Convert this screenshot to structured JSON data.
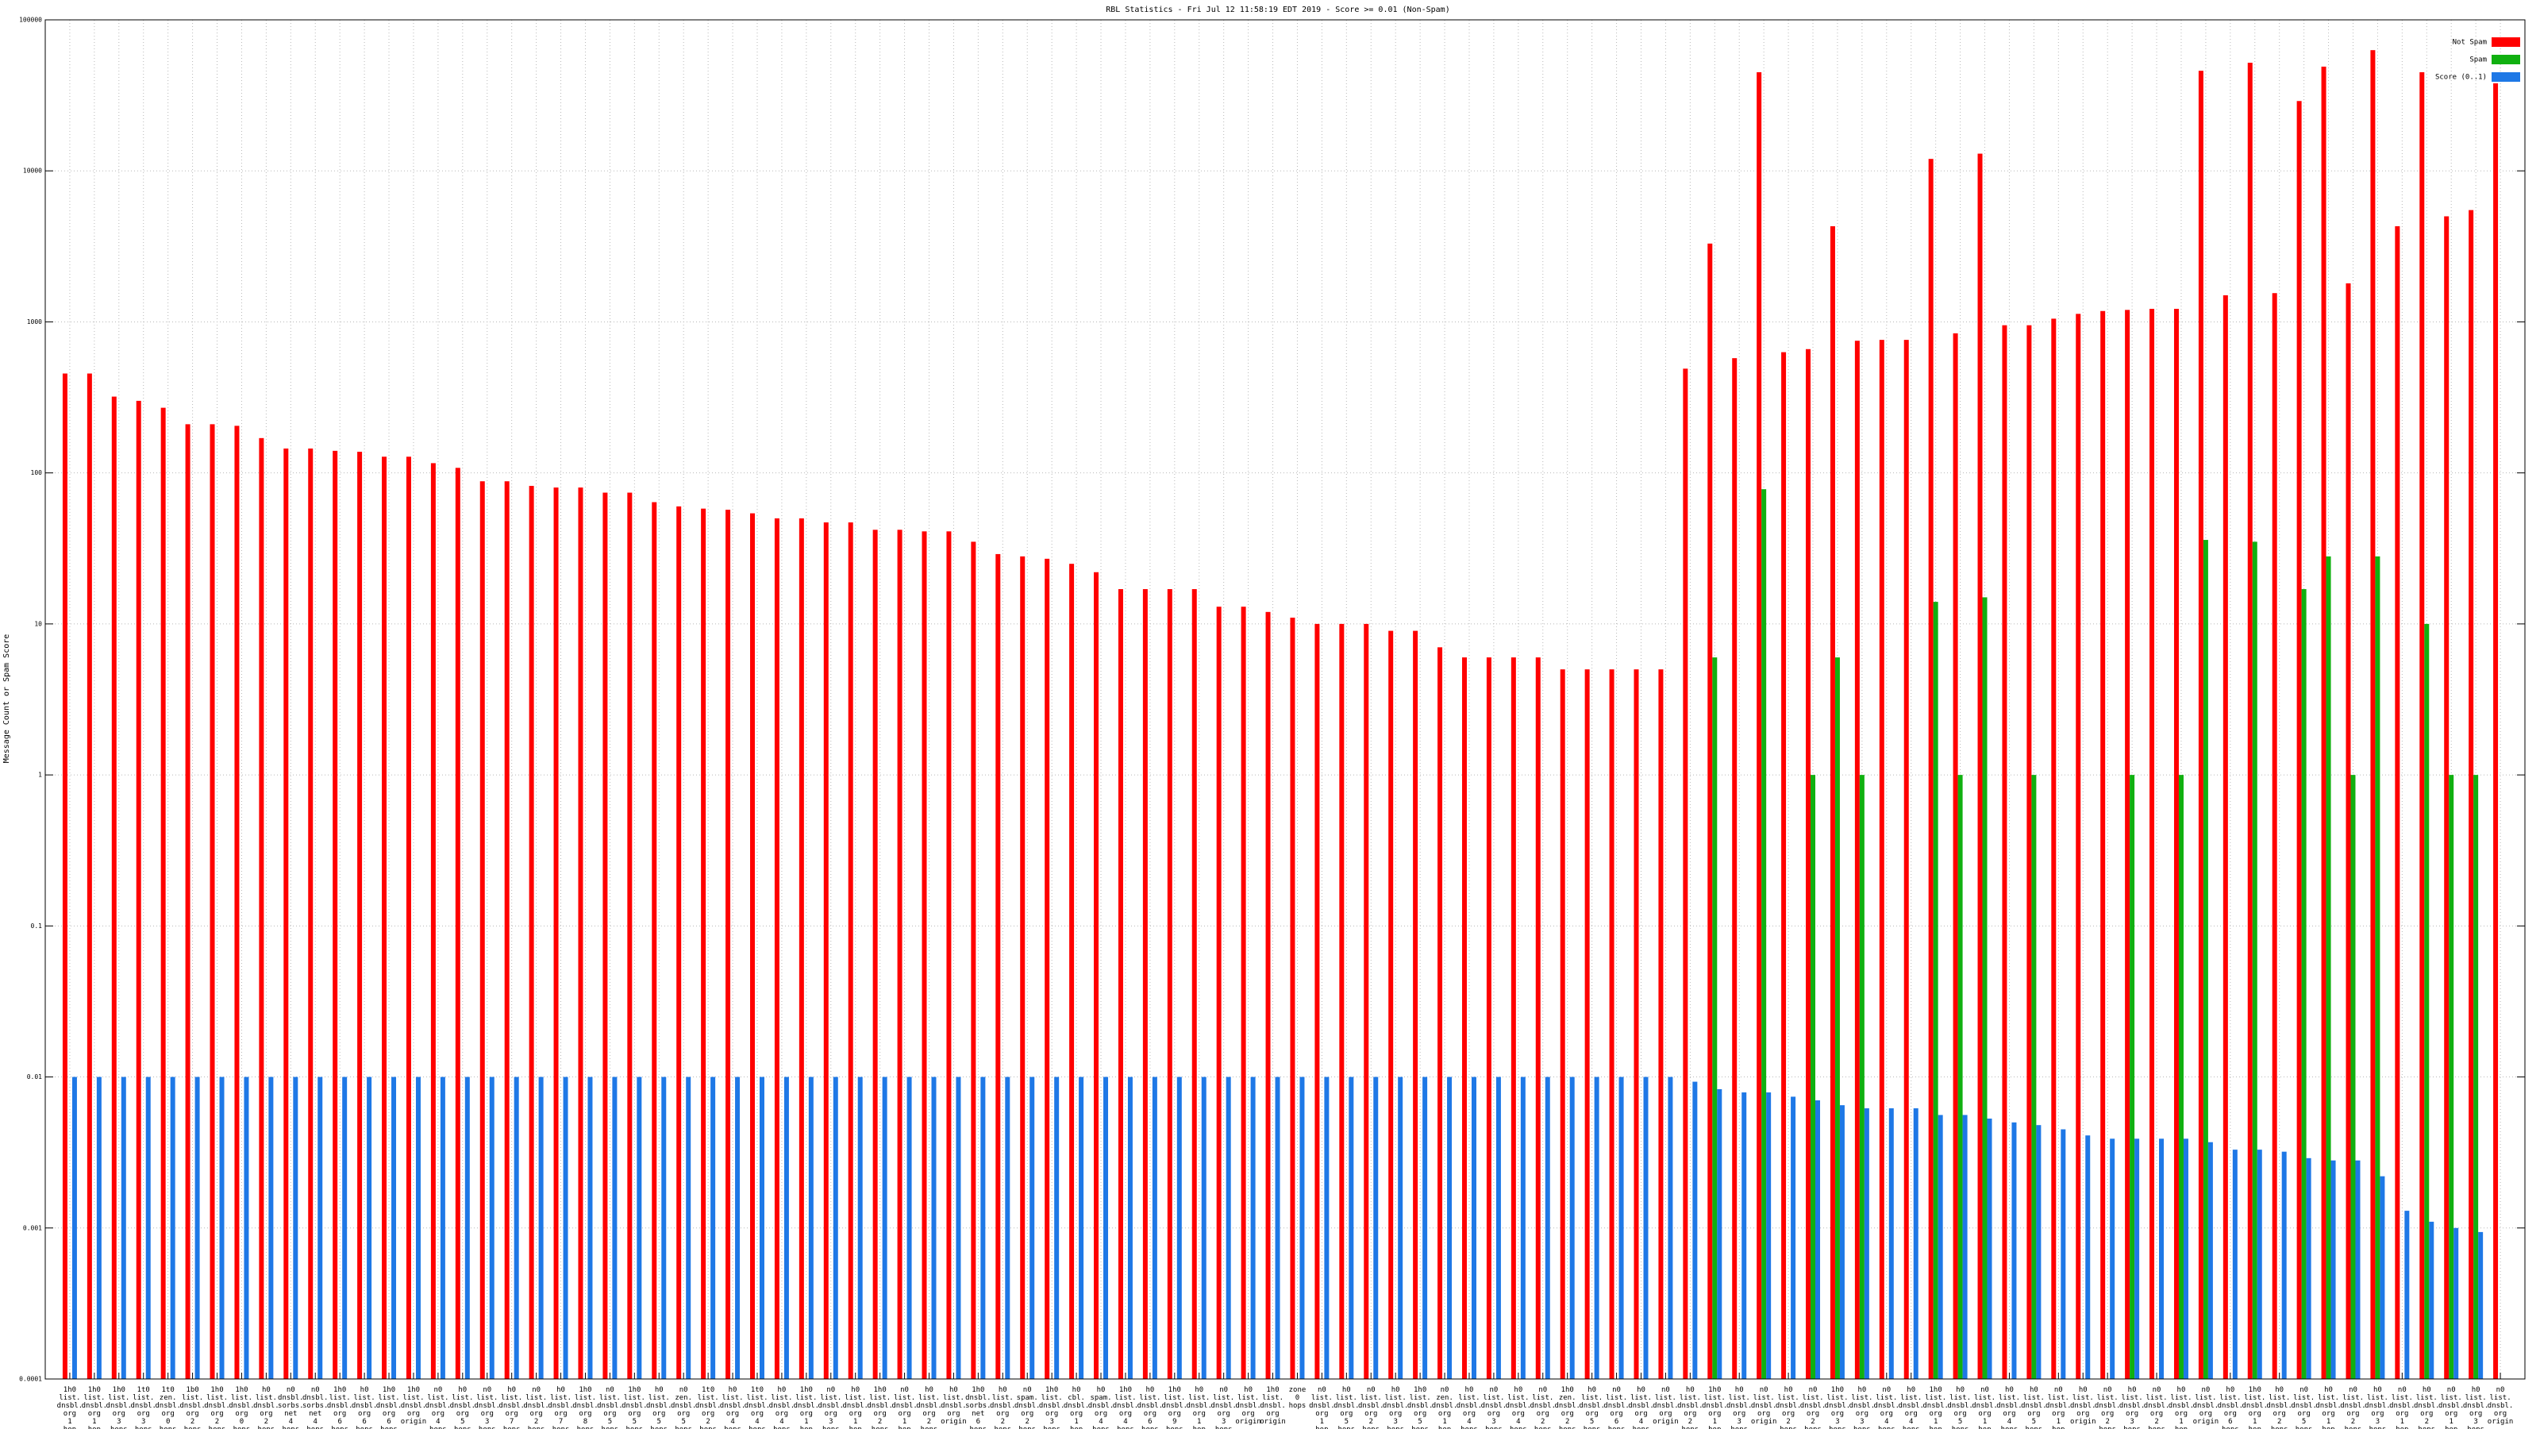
{
  "chart_data": {
    "type": "bar",
    "title": "RBL Statistics - Fri Jul 12 11:58:19 EDT 2019 - Score >= 0.01 (Non-Spam)",
    "y_label": "Message Count or Spam Score",
    "log_scale": true,
    "grid": true,
    "legend": "upper right",
    "ylim": [
      0.0001,
      100000
    ],
    "yticks": [
      0.0001,
      0.001,
      0.01,
      0.1,
      1,
      10,
      100,
      1000,
      10000,
      100000
    ],
    "categories": [
      "1h0 list. dnsbl. org 1 hop",
      "1h0 list. dnsbl. org 1 hop",
      "1h0 list. dnsbl. org 3 hops",
      "1t0 list. dnsbl. org 3 hops",
      "1t0 zen. dnsbl. org 0 hops",
      "1b0 list. dnsbl. org 2 hops",
      "1h0 list. dnsbl. org 2 hops",
      "1h0 list. dnsbl. org 0 hops",
      "h0 list. dnsbl. org 2 hops",
      "n0 dnsbl. sorbs. net 4 hops",
      "n0 dnsbl. sorbs. net 4 hops",
      "1h0 list. dnsbl. org 6 hops",
      "h0 list. dnsbl. org 6 hops",
      "1h0 list. dnsbl. org 6 hops",
      "1h0 list. dnsbl. org origin",
      "n0 list. dnsbl. org 4 hops",
      "h0 list. dnsbl. org 5 hops",
      "n0 list. dnsbl. org 3 hops",
      "h0 list. dnsbl. org 7 hops",
      "n0 list. dnsbl. org 2 hops",
      "h0 list. dnsbl. org 7 hops",
      "1h0 list. dnsbl. org 8 hops",
      "n0 list. dnsbl. org 5 hops",
      "1h0 list. dnsbl. org 5 hops",
      "h0 list. dnsbl. org 5 hops",
      "n0 zen. dnsbl. org 5 hops",
      "1t0 list. dnsbl. org 2 hops",
      "h0 list. dnsbl. org 4 hops",
      "1t0 list. dnsbl. org 4 hops",
      "h0 list. dnsbl. org 4 hops",
      "1h0 list. dnsbl. org 1 hop",
      "n0 list. dnsbl. org 3 hops",
      "h0 list. dnsbl. org 1 hop",
      "1h0 list. dnsbl. org 2 hops",
      "n0 list. dnsbl. org 1 hop",
      "h0 list. dnsbl. org 2 hops",
      "h0 list. dnsbl. org origin",
      "1h0 dnsbl. sorbs. net 6 hops",
      "h0 list. dnsbl. org 2 hops",
      "n0 spam. dnsbl. org 2 hops",
      "1h0 list. dnsbl. org 3 hops",
      "h0 cbl. dnsbl. org 1 hop",
      "h0 spam. dnsbl. org 4 hops",
      "1h0 list. dnsbl. org 4 hops",
      "h0 list. dnsbl. org 6 hops",
      "1h0 list. dnsbl. org 9 hops",
      "h0 list. dnsbl. org 1 hop",
      "n0 list. dnsbl. org 3 hops",
      "h0 list. dnsbl. org origin",
      "1h0 list. dnsbl. org origin",
      "zone 0 hops",
      "n0 list. dnsbl. org 1 hop",
      "h0 list. dnsbl. org 5 hops",
      "n0 list. dnsbl. org 2 hops",
      "h0 list. dnsbl. org 3 hops",
      "1h0 list. dnsbl. org 5 hops",
      "n0 zen. dnsbl. org 1 hop",
      "h0 list. dnsbl. org 4 hops",
      "n0 list. dnsbl. org 3 hops",
      "h0 list. dnsbl. org 4 hops",
      "n0 list. dnsbl. org 2 hops",
      "1h0 zen. dnsbl. org 2 hops",
      "h0 list. dnsbl. org 5 hops",
      "n0 list. dnsbl. org 6 hops",
      "h0 list. dnsbl. org 4 hops",
      "n0 list. dnsbl. org origin",
      "h0 list. dnsbl. org 2 hops",
      "1h0 list. dnsbl. org 1 hop",
      "h0 list. dnsbl. org 3 hops",
      "n0 list. dnsbl. org origin",
      "h0 list. dnsbl. org 2 hops",
      "n0 list. dnsbl. org 2 hops",
      "1h0 list. dnsbl. org 3 hops",
      "h0 list. dnsbl. org 3 hops",
      "n0 list. dnsbl. org 4 hops",
      "h0 list. dnsbl. org 4 hops",
      "1h0 list. dnsbl. org 1 hop",
      "h0 list. dnsbl. org 5 hops",
      "n0 list. dnsbl. org 1 hop",
      "h0 list. dnsbl. org 4 hops",
      "h0 list. dnsbl. org 5 hops",
      "n0 list. dnsbl. org 1 hop",
      "h0 list. dnsbl. org origin",
      "n0 list. dnsbl. org 2 hops",
      "h0 list. dnsbl. org 3 hops",
      "n0 list. dnsbl. org 2 hops",
      "h0 list. dnsbl. org 1 hop",
      "n0 list. dnsbl. org origin",
      "h0 list. dnsbl. org 6 hops",
      "1h0 list. dnsbl. org 1 hop",
      "h0 list. dnsbl. org 2 hops",
      "n0 list. dnsbl. org 5 hops",
      "h0 list. dnsbl. org 1 hop",
      "n0 list. dnsbl. org 2 hops",
      "h0 list. dnsbl. org 3 hops",
      "n0 list. dnsbl. org 1 hop",
      "h0 list. dnsbl. org 2 hops",
      "n0 list. dnsbl. org 1 hop",
      "h0 list. dnsbl. org 3 hops",
      "n0 list. dnsbl. org origin"
    ],
    "series": [
      {
        "name": "Not Spam",
        "color": "#ff0000",
        "values": [
          455,
          455,
          320,
          300,
          270,
          210,
          210,
          205,
          170,
          145,
          145,
          140,
          138,
          128,
          128,
          116,
          108,
          88,
          88,
          82,
          80,
          80,
          74,
          74,
          64,
          60,
          58,
          57,
          54,
          50,
          50,
          47,
          47,
          42,
          42,
          41,
          41,
          35,
          29,
          28,
          27,
          25,
          22,
          17,
          17,
          17,
          17,
          13,
          13,
          12,
          11,
          10,
          10,
          10,
          9,
          9,
          7,
          6,
          6,
          6,
          6,
          5,
          5,
          5,
          5,
          5,
          490,
          3300,
          575,
          45000,
          630,
          660,
          4300,
          750,
          760,
          760,
          12000,
          840,
          13000,
          950,
          950,
          1050,
          1130,
          1180,
          1200,
          1220,
          1220,
          46000,
          1500,
          52000,
          1550,
          29000,
          49000,
          1800,
          63000,
          4300,
          45000,
          5000,
          5500,
          38000
        ]
      },
      {
        "name": "Spam",
        "color": "#10b010",
        "values": [
          null,
          null,
          null,
          null,
          null,
          null,
          null,
          null,
          null,
          null,
          null,
          null,
          null,
          null,
          null,
          null,
          null,
          null,
          null,
          null,
          null,
          null,
          null,
          null,
          null,
          null,
          null,
          null,
          null,
          null,
          null,
          null,
          null,
          null,
          null,
          null,
          null,
          null,
          null,
          null,
          null,
          null,
          null,
          null,
          null,
          null,
          null,
          null,
          null,
          null,
          null,
          null,
          null,
          null,
          null,
          null,
          null,
          null,
          null,
          null,
          null,
          null,
          null,
          null,
          null,
          null,
          null,
          6,
          null,
          78,
          null,
          1,
          6,
          1,
          null,
          null,
          14,
          1,
          15,
          null,
          1,
          null,
          null,
          null,
          1,
          null,
          1,
          36,
          null,
          35,
          null,
          17,
          28,
          1,
          28,
          null,
          10,
          1,
          1,
          null
        ]
      },
      {
        "name": "Score (0..1)",
        "color": "#1e78e6",
        "values": [
          0.01,
          0.01,
          0.01,
          0.01,
          0.01,
          0.01,
          0.01,
          0.01,
          0.01,
          0.01,
          0.01,
          0.01,
          0.01,
          0.01,
          0.01,
          0.01,
          0.01,
          0.01,
          0.01,
          0.01,
          0.01,
          0.01,
          0.01,
          0.01,
          0.01,
          0.01,
          0.01,
          0.01,
          0.01,
          0.01,
          0.01,
          0.01,
          0.01,
          0.01,
          0.01,
          0.01,
          0.01,
          0.01,
          0.01,
          0.01,
          0.01,
          0.01,
          0.01,
          0.01,
          0.01,
          0.01,
          0.01,
          0.01,
          0.01,
          0.01,
          0.01,
          0.01,
          0.01,
          0.01,
          0.01,
          0.01,
          0.01,
          0.01,
          0.01,
          0.01,
          0.01,
          0.01,
          0.01,
          0.01,
          0.01,
          0.01,
          0.0093,
          0.0083,
          0.0079,
          0.0079,
          0.0074,
          0.007,
          0.0065,
          0.0062,
          0.0062,
          0.0062,
          0.0056,
          0.0056,
          0.0053,
          0.005,
          0.0048,
          0.0045,
          0.0041,
          0.0039,
          0.0039,
          0.0039,
          0.0039,
          0.0037,
          0.0033,
          0.0033,
          0.0032,
          0.0029,
          0.0028,
          0.0028,
          0.0022,
          0.0013,
          0.0011,
          0.001,
          0.00094,
          null
        ]
      }
    ]
  }
}
